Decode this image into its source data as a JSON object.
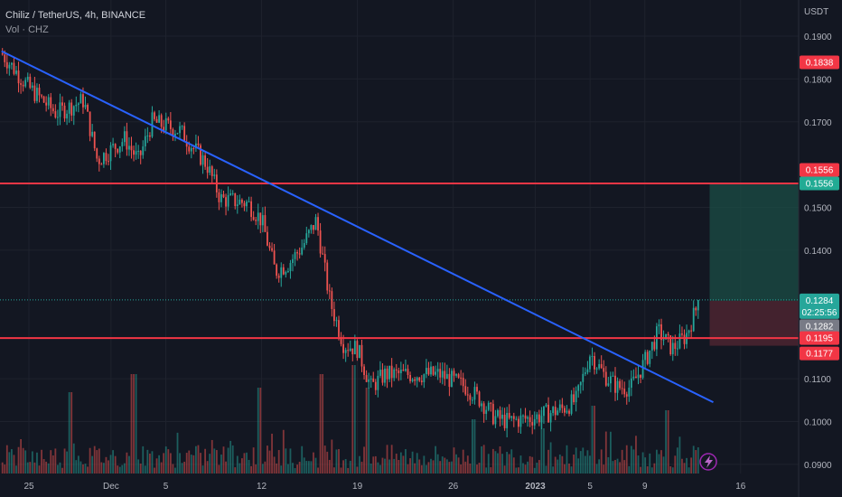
{
  "header": {
    "title": "Chiliz / TetherUS, 4h, BINANCE",
    "volume_label": "Vol · CHZ",
    "currency": "USDT"
  },
  "colors": {
    "background": "#131722",
    "up": "#26a69a",
    "down": "#ef5350",
    "trendline": "#2962ff",
    "horizontal_line": "#f23645",
    "target_zone": "#1b4d46",
    "stop_zone": "#4c2530"
  },
  "badges": {
    "top_price": "0.1838",
    "upper_line": "0.1556",
    "upper_line_repeat": "0.1556",
    "current_price": "0.1284",
    "countdown": "02:25:56",
    "entry": "0.1282",
    "lower_line": "0.1195",
    "stop": "0.1177"
  },
  "chart_data": {
    "type": "candlestick",
    "title": "Chiliz / TetherUS, 4h, BINANCE",
    "ylabel": "USDT",
    "ylim": [
      0.0885,
      0.1955
    ],
    "y_ticks": [
      "0.1900",
      "0.1800",
      "0.1700",
      "0.1500",
      "0.1400",
      "0.1100",
      "0.1000",
      "0.0900"
    ],
    "x_ticks": [
      "25",
      "Dec",
      "5",
      "12",
      "19",
      "26",
      "2023",
      "5",
      "9",
      "16"
    ],
    "x_tick_dates": [
      "2022-11-25",
      "2022-12-01",
      "2022-12-05",
      "2022-12-12",
      "2022-12-19",
      "2022-12-26",
      "2023-01-01",
      "2023-01-05",
      "2023-01-09",
      "2023-01-16"
    ],
    "price_path": [
      [
        "2022-11-23",
        0.186
      ],
      [
        "2022-11-25",
        0.178
      ],
      [
        "2022-11-27",
        0.172
      ],
      [
        "2022-11-29",
        0.175
      ],
      [
        "2022-11-30",
        0.161
      ],
      [
        "2022-12-02",
        0.166
      ],
      [
        "2022-12-03",
        0.161
      ],
      [
        "2022-12-04",
        0.17
      ],
      [
        "2022-12-06",
        0.168
      ],
      [
        "2022-12-08",
        0.16
      ],
      [
        "2022-12-09",
        0.152
      ],
      [
        "2022-12-11",
        0.151
      ],
      [
        "2022-12-12",
        0.147
      ],
      [
        "2022-12-13",
        0.135
      ],
      [
        "2022-12-14",
        0.137
      ],
      [
        "2022-12-15",
        0.141
      ],
      [
        "2022-12-16",
        0.147
      ],
      [
        "2022-12-17",
        0.128
      ],
      [
        "2022-12-18",
        0.118
      ],
      [
        "2022-12-19",
        0.117
      ],
      [
        "2022-12-20",
        0.108
      ],
      [
        "2022-12-21",
        0.111
      ],
      [
        "2022-12-23",
        0.111
      ],
      [
        "2022-12-25",
        0.111
      ],
      [
        "2022-12-27",
        0.108
      ],
      [
        "2022-12-28",
        0.105
      ],
      [
        "2022-12-29",
        0.101
      ],
      [
        "2022-12-30",
        0.1
      ],
      [
        "2023-01-01",
        0.101
      ],
      [
        "2023-01-03",
        0.103
      ],
      [
        "2023-01-04",
        0.105
      ],
      [
        "2023-01-05",
        0.116
      ],
      [
        "2023-01-06",
        0.111
      ],
      [
        "2023-01-07",
        0.108
      ],
      [
        "2023-01-08",
        0.108
      ],
      [
        "2023-01-09",
        0.114
      ],
      [
        "2023-01-10",
        0.121
      ],
      [
        "2023-01-11",
        0.117
      ],
      [
        "2023-01-12",
        0.12
      ],
      [
        "2023-01-13",
        0.1284
      ]
    ],
    "trendline": [
      [
        "2022-11-23",
        0.1865
      ],
      [
        "2023-01-14",
        0.1045
      ]
    ],
    "horizontal_lines": [
      0.1556,
      0.1195
    ],
    "position": {
      "entry": 0.1282,
      "target": 0.1556,
      "stop": 0.1177
    },
    "last_price": 0.1284,
    "volume": "bars",
    "grid": true
  }
}
